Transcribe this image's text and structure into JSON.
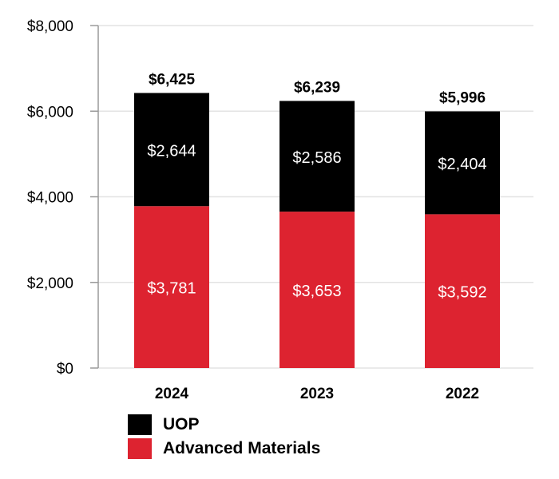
{
  "chart_data": {
    "type": "bar",
    "stacked": true,
    "categories": [
      "2024",
      "2023",
      "2022"
    ],
    "series": [
      {
        "name": "Advanced Materials",
        "color": "#DD2330",
        "values": [
          3781,
          3653,
          3592
        ],
        "labels": [
          "$3,781",
          "$3,653",
          "$3,592"
        ]
      },
      {
        "name": "UOP",
        "color": "#000000",
        "values": [
          2644,
          2586,
          2404
        ],
        "labels": [
          "$2,644",
          "$2,586",
          "$2,404"
        ]
      }
    ],
    "totals": [
      6425,
      6239,
      5996
    ],
    "total_labels": [
      "$6,425",
      "$6,239",
      "$5,996"
    ],
    "yticks": [
      0,
      2000,
      4000,
      6000,
      8000
    ],
    "ytick_labels": [
      "$0",
      "$2,000",
      "$4,000",
      "$6,000",
      "$8,000"
    ],
    "ylim": [
      0,
      8000
    ],
    "grid": true,
    "legend": [
      {
        "label": "UOP",
        "color": "#000000"
      },
      {
        "label": "Advanced Materials",
        "color": "#DD2330"
      }
    ],
    "legend_placement": "bottom-left"
  }
}
